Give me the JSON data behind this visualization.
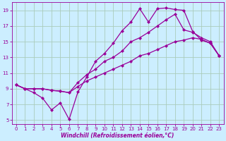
{
  "xlabel": "Windchill (Refroidissement éolien,°C)",
  "bg_color": "#cceeff",
  "line_color": "#990099",
  "grid_color": "#aaccbb",
  "xlim": [
    -0.5,
    23.5
  ],
  "ylim": [
    4.5,
    20.0
  ],
  "xticks": [
    0,
    1,
    2,
    3,
    4,
    5,
    6,
    7,
    8,
    9,
    10,
    11,
    12,
    13,
    14,
    15,
    16,
    17,
    18,
    19,
    20,
    21,
    22,
    23
  ],
  "yticks": [
    5,
    7,
    9,
    11,
    13,
    15,
    17,
    19
  ],
  "series1_x": [
    0,
    1,
    2,
    3,
    4,
    5,
    6,
    7,
    8,
    9,
    10,
    11,
    12,
    13,
    14,
    15,
    16,
    17,
    18,
    19,
    20,
    21,
    22,
    23
  ],
  "series1_y": [
    9.5,
    9.0,
    8.5,
    7.8,
    6.3,
    7.2,
    5.1,
    8.6,
    10.5,
    12.5,
    13.5,
    14.8,
    16.4,
    17.5,
    19.2,
    17.5,
    19.2,
    19.3,
    19.1,
    19.0,
    16.3,
    15.2,
    14.8,
    13.2
  ],
  "series2_x": [
    0,
    1,
    2,
    3,
    4,
    5,
    6,
    7,
    8,
    9,
    10,
    11,
    12,
    13,
    14,
    15,
    16,
    17,
    18,
    19,
    20,
    21,
    22,
    23
  ],
  "series2_y": [
    9.5,
    9.0,
    9.0,
    9.0,
    8.8,
    8.7,
    8.5,
    9.8,
    10.8,
    11.5,
    12.5,
    13.0,
    13.8,
    15.0,
    15.5,
    16.2,
    17.0,
    17.8,
    18.5,
    16.5,
    16.2,
    15.5,
    15.0,
    13.2
  ],
  "series3_x": [
    0,
    1,
    2,
    3,
    4,
    5,
    6,
    7,
    8,
    9,
    10,
    11,
    12,
    13,
    14,
    15,
    16,
    17,
    18,
    19,
    20,
    21,
    22,
    23
  ],
  "series3_y": [
    9.5,
    9.0,
    9.0,
    9.0,
    8.8,
    8.7,
    8.5,
    9.3,
    10.0,
    10.5,
    11.0,
    11.5,
    12.0,
    12.5,
    13.2,
    13.5,
    14.0,
    14.5,
    15.0,
    15.2,
    15.5,
    15.3,
    14.8,
    13.2
  ],
  "markersize": 2.5,
  "linewidth": 0.9,
  "tick_fontsize": 5.0,
  "label_fontsize": 5.5
}
